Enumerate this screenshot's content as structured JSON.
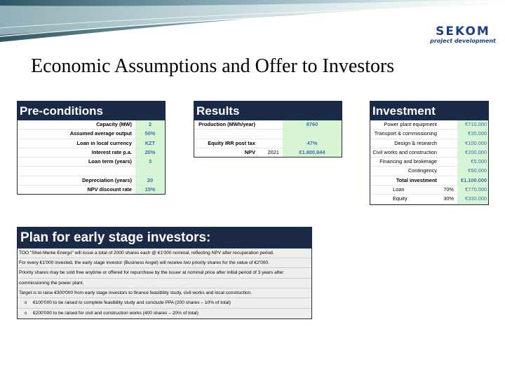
{
  "header": {
    "logo_text": "SEKOM",
    "logo_subtitle": "project development"
  },
  "title": "Economic Assumptions and Offer to Investors",
  "colors": {
    "panel_header": "#1b2a47",
    "value_fill": "#d6f5d3",
    "value_text": "#3a6fb0",
    "logo": "#1c3f86"
  },
  "preconditions": {
    "title": "Pre-conditions",
    "rows": [
      {
        "label": "Capacity (MW)",
        "value": "2"
      },
      {
        "label": "Assumed average output",
        "value": "50%"
      },
      {
        "label": "Loan in local currency",
        "value": "KZT"
      },
      {
        "label": "Interest rate p.a.",
        "value": "20%"
      },
      {
        "label": "Loan term (years)",
        "value": "3"
      },
      {
        "label": "",
        "value": ""
      },
      {
        "label": "Depreciation (years)",
        "value": "20"
      },
      {
        "label": "NPV discount rate",
        "value": "15%"
      }
    ]
  },
  "results": {
    "title": "Results",
    "rows": [
      {
        "label": "Production (MWh/year)",
        "sub": "",
        "value": "8760"
      },
      {
        "label": "",
        "sub": "",
        "value": ""
      },
      {
        "label": "Equity IRR post tax",
        "sub": "",
        "value": "47%"
      },
      {
        "label": "NPV",
        "sub": "2021",
        "value": "€1.800.944"
      }
    ]
  },
  "investment": {
    "title": "Investment",
    "rows": [
      {
        "label": "Power plant equipment",
        "pct": "",
        "value": "€710.000"
      },
      {
        "label": "Transport & commissioning",
        "pct": "",
        "value": "€35.000"
      },
      {
        "label": "Design & research",
        "pct": "",
        "value": "€100.000"
      },
      {
        "label": "Civil works and construction",
        "pct": "",
        "value": "€200.000"
      },
      {
        "label": "Financing and brokerage",
        "pct": "",
        "value": "€5.000"
      },
      {
        "label": "Contingency",
        "pct": "",
        "value": "€50.000"
      },
      {
        "label": "Total investment",
        "pct": "",
        "value": "€1.100.000"
      },
      {
        "label": "Loan",
        "pct": "70%",
        "value": "€770.000"
      },
      {
        "label": "Equity",
        "pct": "30%",
        "value": "€330.000"
      }
    ]
  },
  "plan": {
    "title": "Plan for early stage investors:",
    "lines": [
      "TOO \"Shet-Merke Energo\" will issue a total of 2000 shares each @ €1'000 nominal, reflecting NPV after recuperation period.",
      "For every €1'000 invested, the early stage investor (Business Angel) will receive two priority shares for the value of €2'000.",
      "Priority shares may be sold free anytime or offered for repurchase by the issuer at nominal price after initial period of 3 years after",
      "commissioning the power plant.",
      "Target is to raise €300'000 from early stage investors to finance feasibility study, civil works and local construction."
    ],
    "bullets": [
      "€100'000 to be raised to complete feasibility study and conclude PPA (200 shares – 10% of total)",
      "€200'000 to be raised for civil and construction works (400 shares – 20% of total)"
    ]
  }
}
